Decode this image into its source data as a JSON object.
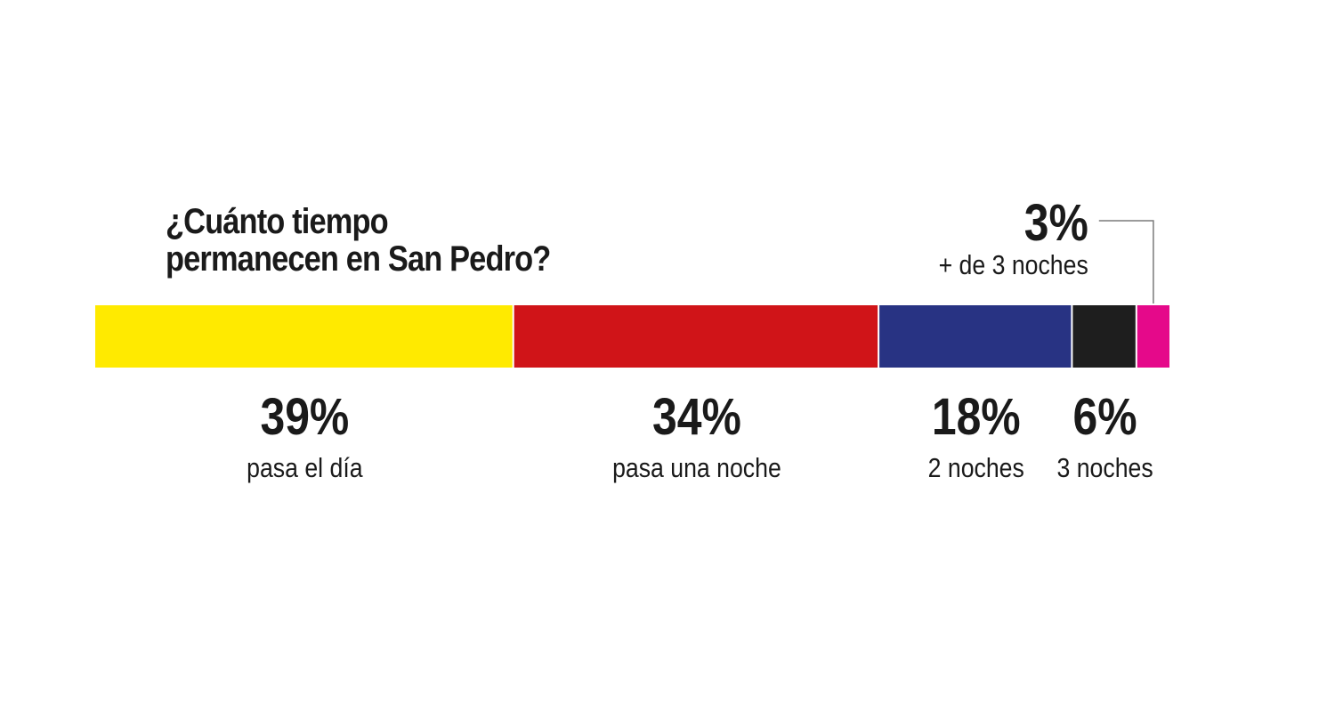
{
  "chart_data": {
    "type": "bar",
    "orientation": "horizontal-stacked",
    "title": "¿Cuánto tiempo permanecen en San Pedro?",
    "title_lines": [
      "¿Cuánto tiempo",
      "permanecen en San Pedro?"
    ],
    "unit": "%",
    "total": 100,
    "segments": [
      {
        "value": 39,
        "value_label": "39%",
        "category": "pasa el día",
        "color": "#FFEA00",
        "label_position": "below"
      },
      {
        "value": 34,
        "value_label": "34%",
        "category": "pasa una noche",
        "color": "#D01418",
        "label_position": "below"
      },
      {
        "value": 18,
        "value_label": "18%",
        "category": "2 noches",
        "color": "#283383",
        "label_position": "below"
      },
      {
        "value": 6,
        "value_label": "6%",
        "category": "3 noches",
        "color": "#1E1E1E",
        "label_position": "below"
      },
      {
        "value": 3,
        "value_label": "3%",
        "category": "+ de 3 noches",
        "color": "#E5098A",
        "label_position": "above-callout"
      }
    ],
    "grid": false,
    "legend": "none"
  }
}
